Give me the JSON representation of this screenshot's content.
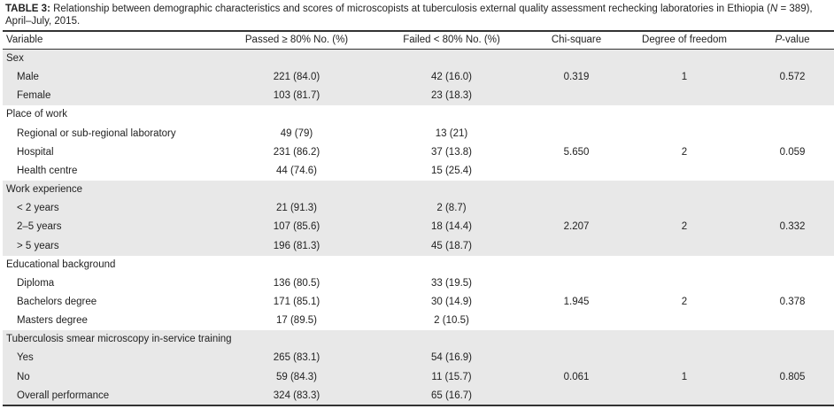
{
  "caption": {
    "label": "TABLE 3:",
    "text_before": " Relationship between demographic characteristics and scores of microscopists at tuberculosis external quality assessment rechecking laboratories in Ethiopia (",
    "n_symbol": "N",
    "text_after": " = 389), April–July, 2015."
  },
  "header": {
    "variable": "Variable",
    "passed": "Passed ≥ 80% No. (%)",
    "failed": "Failed < 80% No. (%)",
    "chi_square": "Chi-square",
    "df": "Degree of freedom",
    "p_symbol": "P",
    "p_rest": "-value"
  },
  "groups": [
    {
      "label": "Sex",
      "rows": [
        [
          "Male",
          "221 (84.0)",
          "42 (16.0)"
        ],
        [
          "Female",
          "103 (81.7)",
          "23 (18.3)"
        ]
      ],
      "chi_square": "0.319",
      "df": "1",
      "p_value": "0.572"
    },
    {
      "label": "Place of work",
      "rows": [
        [
          "Regional or sub-regional laboratory",
          "49 (79)",
          "13 (21)"
        ],
        [
          "Hospital",
          "231 (86.2)",
          "37 (13.8)"
        ],
        [
          "Health centre",
          "44 (74.6)",
          "15 (25.4)"
        ]
      ],
      "chi_square": "5.650",
      "df": "2",
      "p_value": "0.059"
    },
    {
      "label": "Work experience",
      "rows": [
        [
          "< 2 years",
          "21 (91.3)",
          "2 (8.7)"
        ],
        [
          "2–5 years",
          "107 (85.6)",
          "18 (14.4)"
        ],
        [
          "> 5 years",
          "196 (81.3)",
          "45 (18.7)"
        ]
      ],
      "chi_square": "2.207",
      "df": "2",
      "p_value": "0.332"
    },
    {
      "label": "Educational background",
      "rows": [
        [
          "Diploma",
          "136 (80.5)",
          "33 (19.5)"
        ],
        [
          "Bachelors degree",
          "171 (85.1)",
          "30 (14.9)"
        ],
        [
          "Masters degree",
          "17 (89.5)",
          "2 (10.5)"
        ]
      ],
      "chi_square": "1.945",
      "df": "2",
      "p_value": "0.378"
    },
    {
      "label": "Tuberculosis smear microscopy in-service training",
      "rows": [
        [
          "Yes",
          "265 (83.1)",
          "54 (16.9)"
        ],
        [
          "No",
          "59 (84.3)",
          "11 (15.7)"
        ],
        [
          "Overall performance",
          "324 (83.3)",
          "65 (16.7)"
        ]
      ],
      "chi_square": "0.061",
      "df": "1",
      "p_value": "0.805"
    }
  ]
}
